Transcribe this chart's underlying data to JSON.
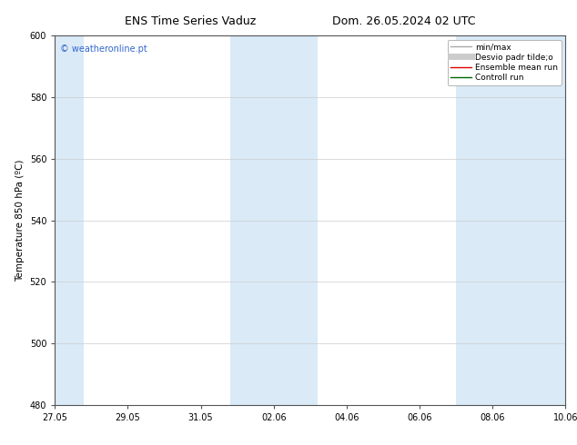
{
  "title_left": "ENS Time Series Vaduz",
  "title_right": "Dom. 26.05.2024 02 UTC",
  "ylabel": "Temperature 850 hPa (ºC)",
  "watermark": "© weatheronline.pt",
  "watermark_color": "#3366cc",
  "ylim": [
    480,
    600
  ],
  "yticks": [
    480,
    500,
    520,
    540,
    560,
    580,
    600
  ],
  "xlim_start": 0,
  "xlim_end": 14,
  "xtick_positions": [
    0,
    2,
    4,
    6,
    8,
    10,
    12,
    14
  ],
  "xtick_labels": [
    "27.05",
    "29.05",
    "31.05",
    "02.06",
    "04.06",
    "06.06",
    "08.06",
    "10.06"
  ],
  "bg_color": "#ffffff",
  "plot_bg_color": "#ffffff",
  "shaded_bands": [
    {
      "x_start": 0.0,
      "x_end": 0.8,
      "color": "#daeaf7"
    },
    {
      "x_start": 4.8,
      "x_end": 7.2,
      "color": "#daeaf7"
    },
    {
      "x_start": 11.0,
      "x_end": 14.0,
      "color": "#daeaf7"
    }
  ],
  "legend_entries": [
    {
      "label": "min/max",
      "color": "#aaaaaa",
      "lw": 1.0
    },
    {
      "label": "Desvio padr tilde;o",
      "color": "#cccccc",
      "lw": 5
    },
    {
      "label": "Ensemble mean run",
      "color": "#dd0000",
      "lw": 1.0
    },
    {
      "label": "Controll run",
      "color": "#006600",
      "lw": 1.0
    }
  ],
  "grid_color": "#cccccc",
  "tick_color": "#000000",
  "title_fontsize": 9,
  "label_fontsize": 7.5,
  "tick_fontsize": 7,
  "legend_fontsize": 6.5,
  "watermark_fontsize": 7
}
